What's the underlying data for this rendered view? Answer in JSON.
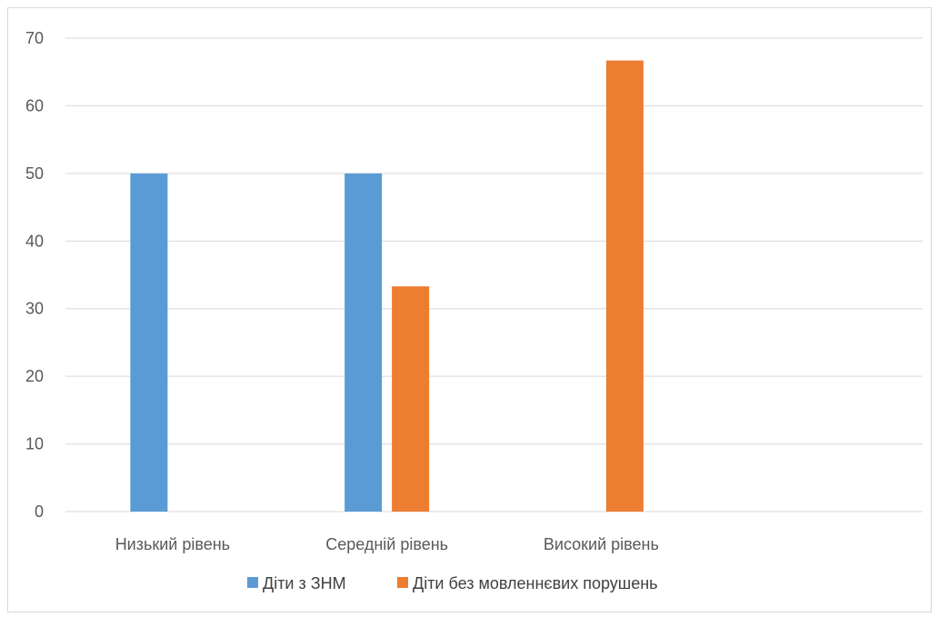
{
  "chart_data": {
    "type": "bar",
    "categories": [
      "Низький рівень",
      "Середній рівень",
      "Високий рівень",
      ""
    ],
    "series": [
      {
        "name": "Діти з ЗНМ",
        "color": "#5b9bd5",
        "values": [
          50,
          50,
          0,
          null
        ]
      },
      {
        "name": "Діти без мовленнєвих порушень",
        "color": "#ed7d31",
        "values": [
          0,
          33.3,
          66.7,
          null
        ]
      }
    ],
    "yticks": [
      0,
      10,
      20,
      30,
      40,
      50,
      60,
      70
    ],
    "ylim": [
      0,
      70
    ],
    "grid": true,
    "gridline_color": "#d9d9d9",
    "legend_position": "bottom"
  }
}
